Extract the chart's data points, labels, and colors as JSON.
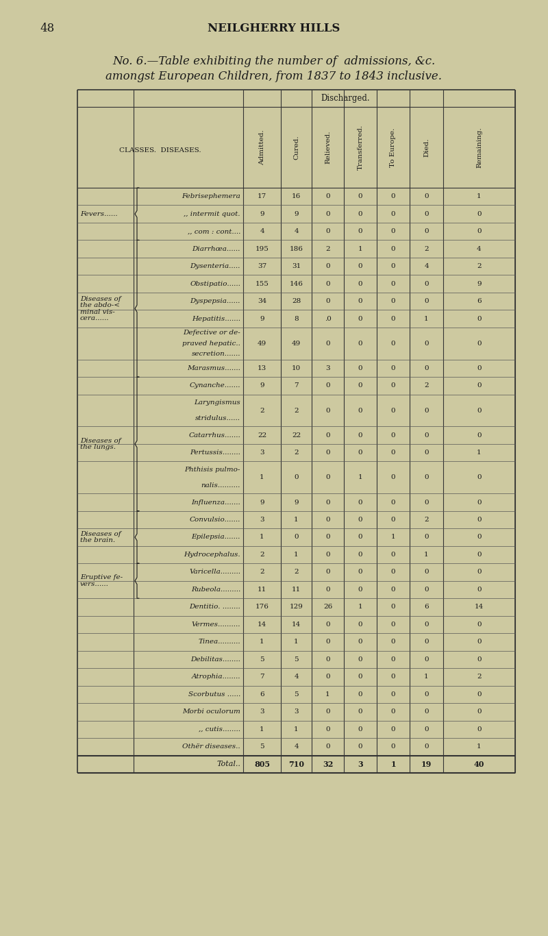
{
  "page_number": "48",
  "page_header": "NEILGHERRY HILLS",
  "title_line1": "No. 6.—Table exhibiting the number of  admissions, &c.",
  "title_line2": "amongst European Children, from 1837 to 1843 inclusive.",
  "bg_color": "#cdc9a0",
  "text_color": "#1a1a1a",
  "col_headers": [
    "Admitted.",
    "Cured.",
    "Relieved.",
    "Transferred.",
    "To Europe.",
    "Died.",
    "Remaining."
  ],
  "discharged_label": "Discharged.",
  "visual_rows": [
    {
      "class_label": "Fevers......",
      "class_start": true,
      "class_lines": [
        "Fevers......"
      ],
      "disease_lines": [
        "Febrisephemera"
      ],
      "vals": [
        "17",
        "16",
        "0",
        "0",
        "0",
        "0",
        "1"
      ],
      "tall": false
    },
    {
      "class_label": null,
      "class_start": false,
      "class_lines": [],
      "disease_lines": [
        ",, intermit quot."
      ],
      "vals": [
        "9",
        "9",
        "0",
        "0",
        "0",
        "0",
        "0"
      ],
      "tall": false
    },
    {
      "class_label": null,
      "class_start": false,
      "class_lines": [],
      "disease_lines": [
        ",, com : cont...."
      ],
      "vals": [
        "4",
        "4",
        "0",
        "0",
        "0",
        "0",
        "0"
      ],
      "tall": false
    },
    {
      "class_label": "Diseases of the abdo-< minal vis- cera......",
      "class_start": true,
      "class_lines": [
        "Diseases of",
        "the abdo-<",
        "minal vis-",
        "cera......"
      ],
      "disease_lines": [
        "Diarrhœa......"
      ],
      "vals": [
        "195",
        "186",
        "2",
        "1",
        "0",
        "2",
        "4"
      ],
      "tall": false
    },
    {
      "class_label": null,
      "class_start": false,
      "class_lines": [],
      "disease_lines": [
        "Dysenteria....."
      ],
      "vals": [
        "37",
        "31",
        "0",
        "0",
        "0",
        "4",
        "2"
      ],
      "tall": false
    },
    {
      "class_label": null,
      "class_start": false,
      "class_lines": [],
      "disease_lines": [
        "Obstipatio......"
      ],
      "vals": [
        "155",
        "146",
        "0",
        "0",
        "0",
        "0",
        "9"
      ],
      "tall": false
    },
    {
      "class_label": null,
      "class_start": false,
      "class_lines": [],
      "disease_lines": [
        "Dyspepsia......"
      ],
      "vals": [
        "34",
        "28",
        "0",
        "0",
        "0",
        "0",
        "6"
      ],
      "tall": false
    },
    {
      "class_label": null,
      "class_start": false,
      "class_lines": [],
      "disease_lines": [
        "Hepatitis......."
      ],
      "vals": [
        "9",
        "8",
        ".0",
        "0",
        "0",
        "1",
        "0"
      ],
      "tall": false
    },
    {
      "class_label": null,
      "class_start": false,
      "class_lines": [],
      "disease_lines": [
        "Defective or de-",
        "praved hepatic..",
        "secretion......."
      ],
      "vals": [
        "49",
        "49",
        "0",
        "0",
        "0",
        "0",
        "0"
      ],
      "tall": true
    },
    {
      "class_label": null,
      "class_start": false,
      "class_lines": [],
      "disease_lines": [
        "Marasmus......."
      ],
      "vals": [
        "13",
        "10",
        "3",
        "0",
        "0",
        "0",
        "0"
      ],
      "tall": false
    },
    {
      "class_label": "Diseases of the lungs.",
      "class_start": true,
      "class_lines": [
        "Diseases of",
        "the lungs."
      ],
      "disease_lines": [
        "Cynanche......."
      ],
      "vals": [
        "9",
        "7",
        "0",
        "0",
        "0",
        "2",
        "0"
      ],
      "tall": false
    },
    {
      "class_label": null,
      "class_start": false,
      "class_lines": [],
      "disease_lines": [
        "Laryngismus",
        "stridulus......"
      ],
      "vals": [
        "2",
        "2",
        "0",
        "0",
        "0",
        "0",
        "0"
      ],
      "tall": true
    },
    {
      "class_label": null,
      "class_start": false,
      "class_lines": [],
      "disease_lines": [
        "Catarrhus......."
      ],
      "vals": [
        "22",
        "22",
        "0",
        "0",
        "0",
        "0",
        "0"
      ],
      "tall": false
    },
    {
      "class_label": null,
      "class_start": false,
      "class_lines": [],
      "disease_lines": [
        "Pertussis........"
      ],
      "vals": [
        "3",
        "2",
        "0",
        "0",
        "0",
        "0",
        "1"
      ],
      "tall": false
    },
    {
      "class_label": null,
      "class_start": false,
      "class_lines": [],
      "disease_lines": [
        "Phthisis pulmo-",
        "nalis.........."
      ],
      "vals": [
        "1",
        "0",
        "0",
        "1",
        "0",
        "0",
        "0"
      ],
      "tall": true
    },
    {
      "class_label": null,
      "class_start": false,
      "class_lines": [],
      "disease_lines": [
        "Influenza......."
      ],
      "vals": [
        "9",
        "9",
        "0",
        "0",
        "0",
        "0",
        "0"
      ],
      "tall": false
    },
    {
      "class_label": "Diseases of the brain.",
      "class_start": true,
      "class_lines": [
        "Diseases of",
        "the brain."
      ],
      "disease_lines": [
        "Convulsio......."
      ],
      "vals": [
        "3",
        "1",
        "0",
        "0",
        "0",
        "2",
        "0"
      ],
      "tall": false
    },
    {
      "class_label": null,
      "class_start": false,
      "class_lines": [],
      "disease_lines": [
        "Epilepsia......."
      ],
      "vals": [
        "1",
        "0",
        "0",
        "0",
        "1",
        "0",
        "0"
      ],
      "tall": false
    },
    {
      "class_label": null,
      "class_start": false,
      "class_lines": [],
      "disease_lines": [
        "Hydrocephalus."
      ],
      "vals": [
        "2",
        "1",
        "0",
        "0",
        "0",
        "1",
        "0"
      ],
      "tall": false
    },
    {
      "class_label": "Eruptive fe- vers......",
      "class_start": true,
      "class_lines": [
        "Eruptive fe-",
        "vers......"
      ],
      "disease_lines": [
        "Varicella........."
      ],
      "vals": [
        "2",
        "2",
        "0",
        "0",
        "0",
        "0",
        "0"
      ],
      "tall": false
    },
    {
      "class_label": null,
      "class_start": false,
      "class_lines": [],
      "disease_lines": [
        "Rubeola........."
      ],
      "vals": [
        "11",
        "11",
        "0",
        "0",
        "0",
        "0",
        "0"
      ],
      "tall": false
    }
  ],
  "standalone_rows": [
    {
      "disease_lines": [
        "Dentitio. ........"
      ],
      "vals": [
        "176",
        "129",
        "26",
        "1",
        "0",
        "6",
        "14"
      ]
    },
    {
      "disease_lines": [
        "Vermes.........."
      ],
      "vals": [
        "14",
        "14",
        "0",
        "0",
        "0",
        "0",
        "0"
      ]
    },
    {
      "disease_lines": [
        "Tinea.........."
      ],
      "vals": [
        "1",
        "1",
        "0",
        "0",
        "0",
        "0",
        "0"
      ]
    },
    {
      "disease_lines": [
        "Debilitas........"
      ],
      "vals": [
        "5",
        "5",
        "0",
        "0",
        "0",
        "0",
        "0"
      ]
    },
    {
      "disease_lines": [
        "Atrophia........"
      ],
      "vals": [
        "7",
        "4",
        "0",
        "0",
        "0",
        "1",
        "2"
      ]
    },
    {
      "disease_lines": [
        "Scorbutus ......"
      ],
      "vals": [
        "6",
        "5",
        "1",
        "0",
        "0",
        "0",
        "0"
      ]
    },
    {
      "disease_lines": [
        "Morbi oculorum"
      ],
      "vals": [
        "3",
        "3",
        "0",
        "0",
        "0",
        "0",
        "0"
      ]
    },
    {
      "disease_lines": [
        ",, cutis........"
      ],
      "vals": [
        "1",
        "1",
        "0",
        "0",
        "0",
        "0",
        "0"
      ]
    },
    {
      "disease_lines": [
        "Othër diseases.."
      ],
      "vals": [
        "5",
        "4",
        "0",
        "0",
        "0",
        "0",
        "1"
      ]
    }
  ],
  "total_row": {
    "label": "Total..",
    "vals": [
      "805",
      "710",
      "32",
      "3",
      "1",
      "19",
      "40"
    ]
  }
}
